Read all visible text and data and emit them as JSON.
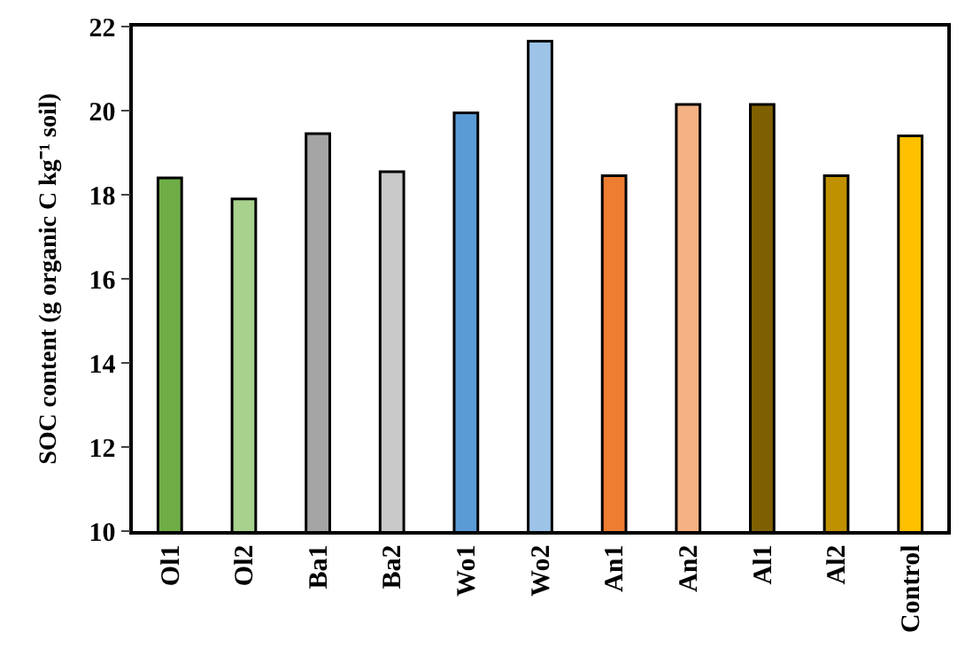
{
  "chart_data": {
    "type": "bar",
    "ylabel": "SOC content (g organic C kg⁻¹ soil)",
    "categories": [
      "Ol1",
      "Ol2",
      "Ba1",
      "Ba2",
      "Wo1",
      "Wo2",
      "An1",
      "An2",
      "Al1",
      "Al2",
      "Control"
    ],
    "values": [
      18.4,
      17.9,
      19.45,
      18.55,
      19.95,
      21.65,
      18.45,
      20.15,
      20.15,
      18.45,
      19.4
    ],
    "colors": [
      "#70ad47",
      "#a9d18e",
      "#a5a5a5",
      "#c9c9c9",
      "#5b9bd5",
      "#9dc3e6",
      "#ed7d31",
      "#f4b183",
      "#7f6000",
      "#bf9000",
      "#ffc000"
    ],
    "ylim": [
      10,
      22
    ],
    "yticks": [
      10,
      12,
      14,
      16,
      18,
      20,
      22
    ]
  }
}
